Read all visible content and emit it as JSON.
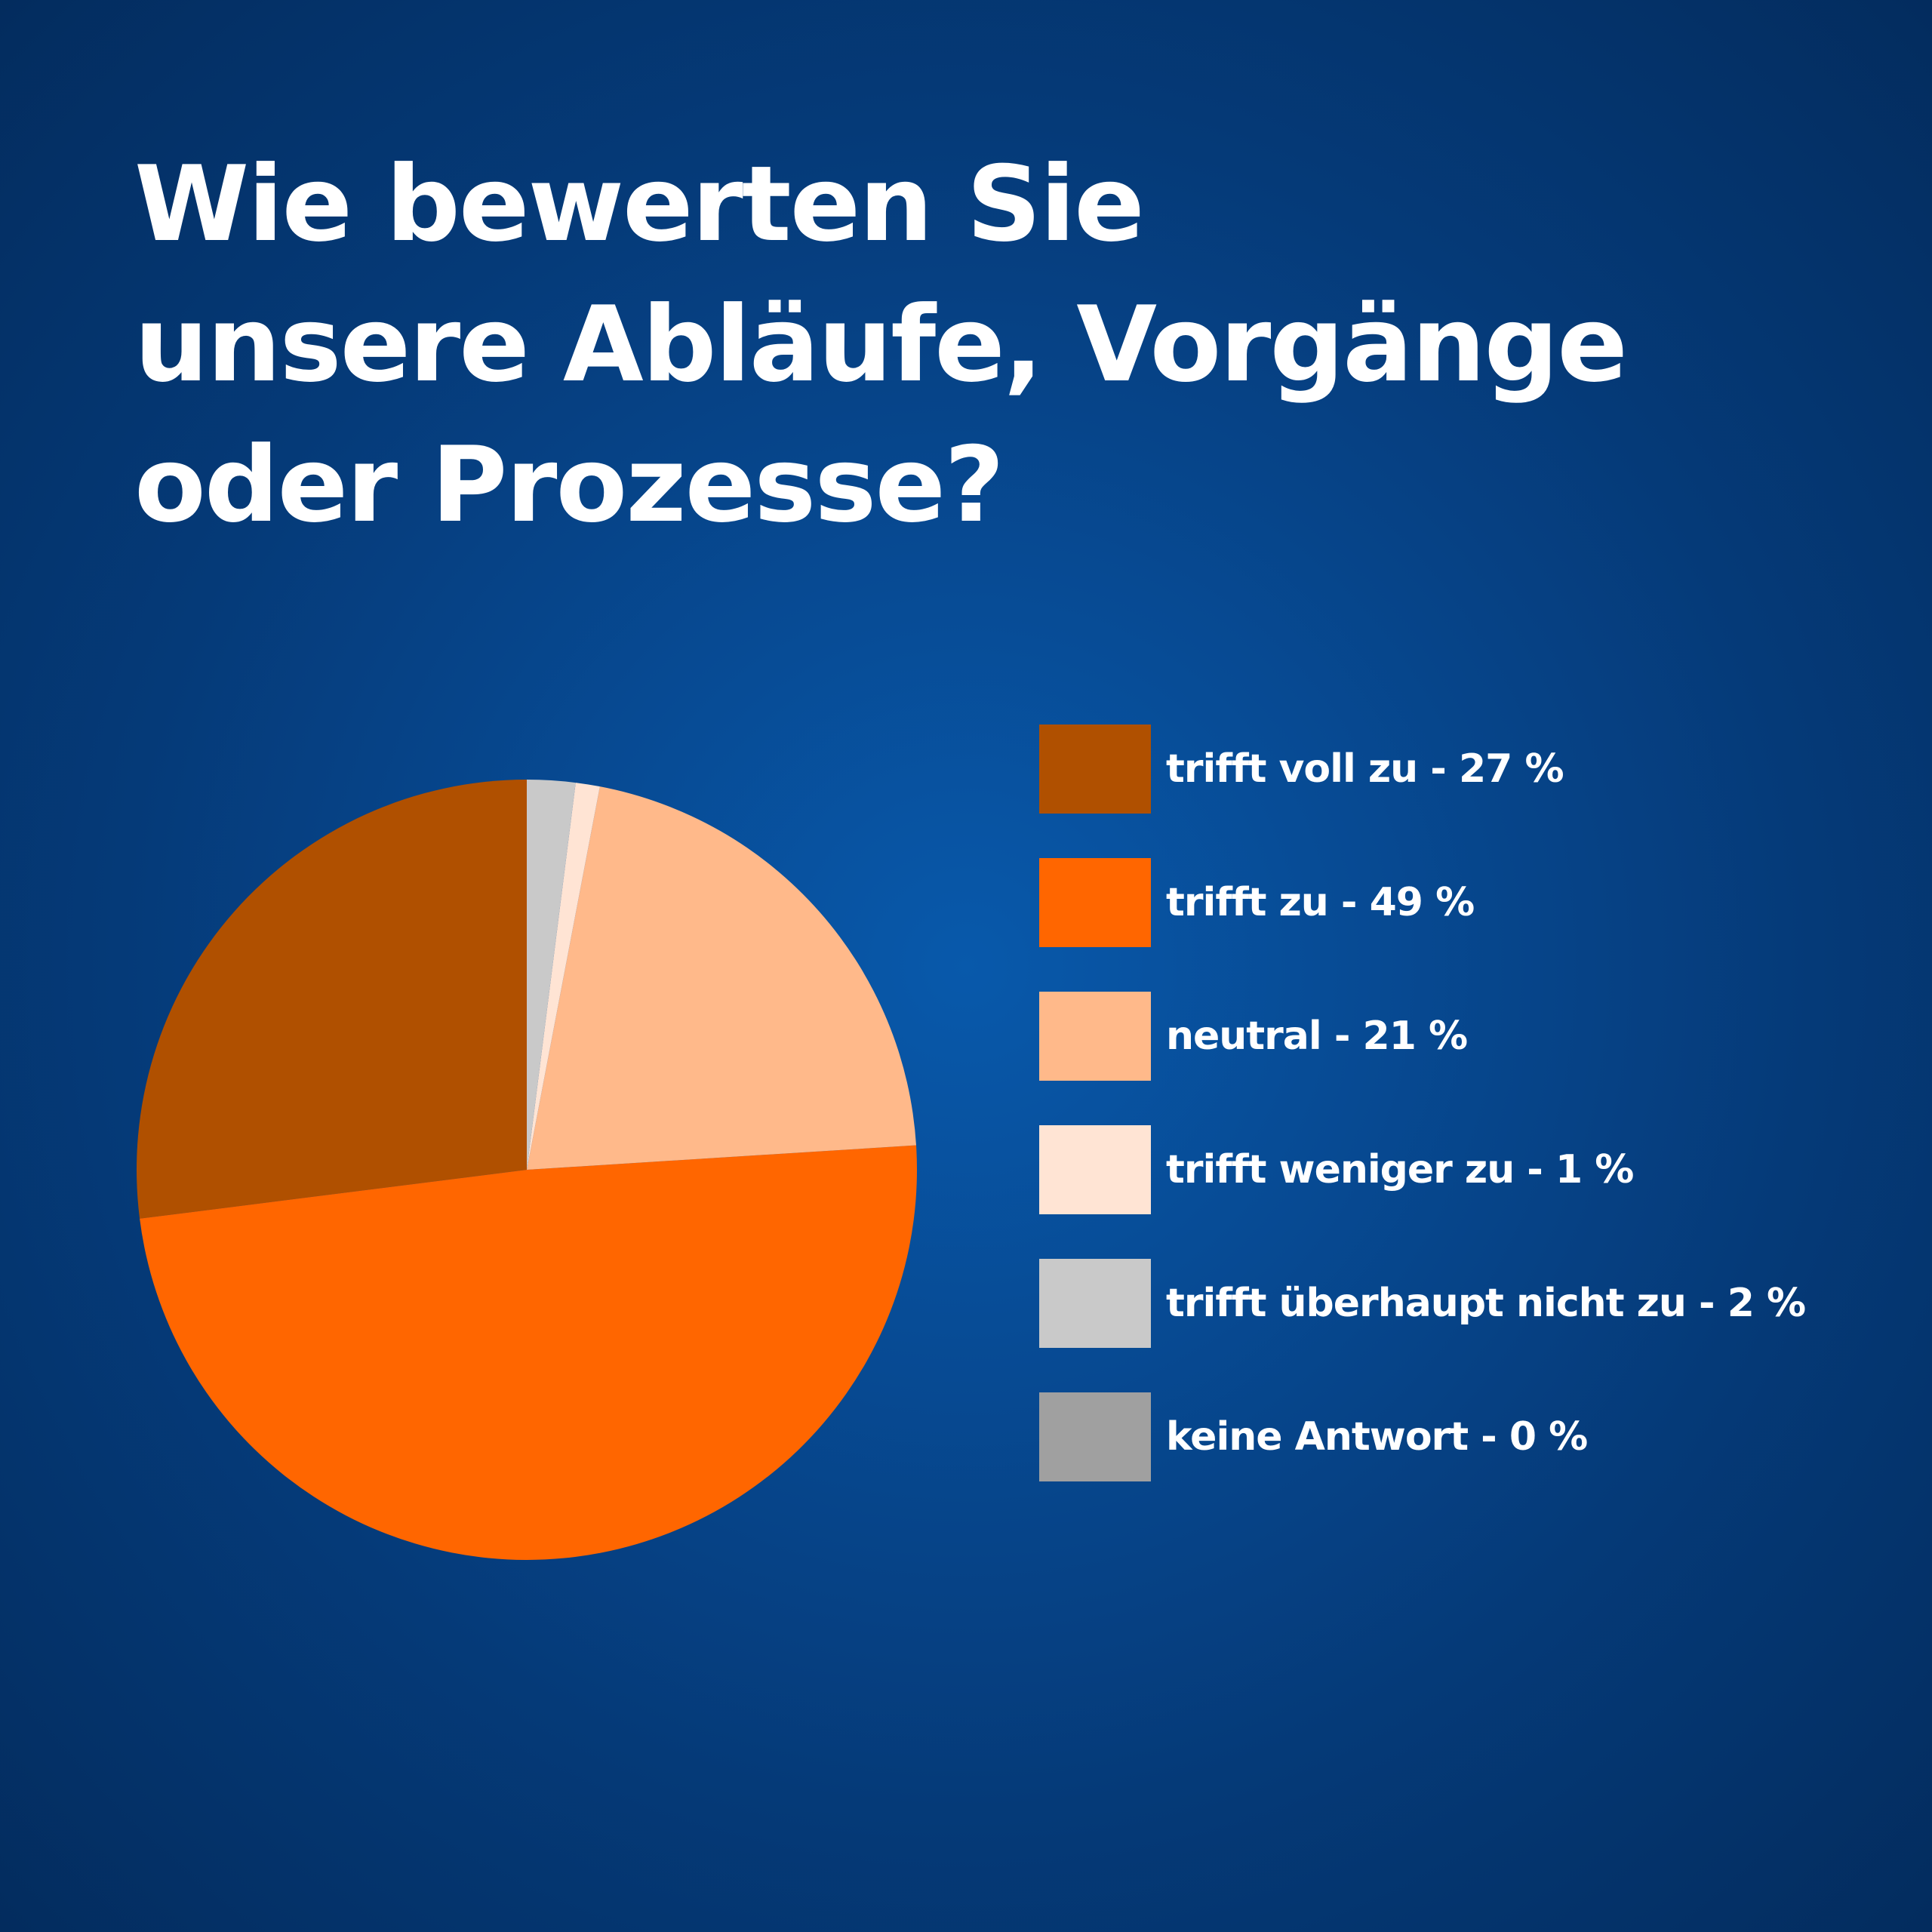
{
  "title_lines": [
    "Wie bewerten Sie",
    "unsere Abläufe, Vorgänge",
    "oder Prozesse?"
  ],
  "chart_data": {
    "type": "pie",
    "title": "Wie bewerten Sie unsere Abläufe, Vorgänge oder Prozesse?",
    "legend_position": "right",
    "slices": [
      {
        "label": "trifft voll zu - 27 %",
        "value": 27,
        "color": "#b05000"
      },
      {
        "label": "trifft zu - 49 %",
        "value": 49,
        "color": "#ff6600"
      },
      {
        "label": "neutral - 21 %",
        "value": 21,
        "color": "#ffb98a"
      },
      {
        "label": "trifft weniger zu - 1 %",
        "value": 1,
        "color": "#ffe4d4"
      },
      {
        "label": "trifft überhaupt nicht zu - 2 %",
        "value": 2,
        "color": "#c9c9c9"
      },
      {
        "label": "keine Antwort - 0 %",
        "value": 0,
        "color": "#a0a0a0"
      }
    ]
  }
}
